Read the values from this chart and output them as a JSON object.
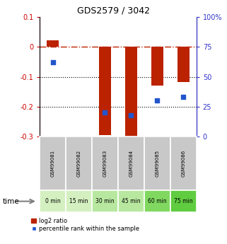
{
  "title": "GDS2579 / 3042",
  "samples": [
    "GSM99081",
    "GSM99082",
    "GSM99083",
    "GSM99084",
    "GSM99085",
    "GSM99086"
  ],
  "time_labels": [
    "0 min",
    "15 min",
    "30 min",
    "45 min",
    "60 min",
    "75 min"
  ],
  "time_colors": [
    "#d4f0c0",
    "#d4f0c0",
    "#b8e8a0",
    "#b8e8a0",
    "#80d860",
    "#60cc40"
  ],
  "log2_ratio": [
    0.022,
    0.0,
    -0.295,
    -0.3,
    -0.13,
    -0.118
  ],
  "percentile_rank": [
    62,
    null,
    20,
    18,
    30,
    33
  ],
  "ylim_left": [
    -0.3,
    0.1
  ],
  "ylim_right": [
    0,
    100
  ],
  "bar_color": "#bb2200",
  "dot_color": "#2255cc",
  "background_plot": "#ffffff",
  "label_color_left": "#cc0000",
  "label_color_right": "#3333cc",
  "sample_box_color": "#c8c8c8",
  "figsize": [
    3.21,
    3.45
  ],
  "dpi": 100
}
